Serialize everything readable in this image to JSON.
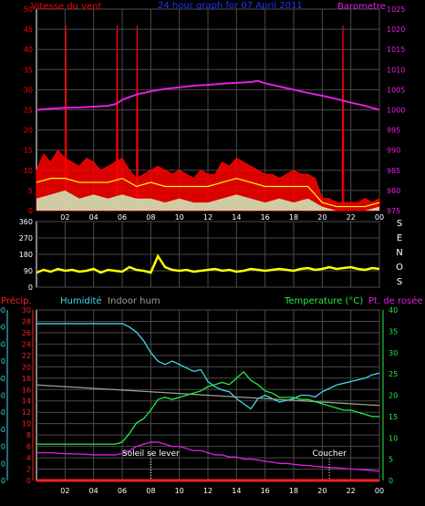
{
  "colors": {
    "wind": "#ff0000",
    "gust": "#ff0000",
    "wind_avg": "#ffff00",
    "wind_low": "#ccffcc",
    "title": "#2233ff",
    "barometer": "#e020e0",
    "direction": "#ffff00",
    "precip": "#ff2020",
    "humidity": "#40d8e8",
    "indoor_hum": "#a0a090",
    "temperature": "#22ee44",
    "dewpoint": "#e020e0",
    "axis": "#ffffff",
    "grid": "#4a4a4a"
  },
  "chart_data": [
    {
      "type": "line",
      "title": "24 hour graph for  07 April 2011",
      "ylabel": "Vitesse du vent",
      "y2label": "Barometre",
      "ylim": [
        0,
        50
      ],
      "y2lim": [
        975,
        1025
      ],
      "yticks": [
        "0",
        "5",
        "10",
        "15",
        "20",
        "25",
        "30",
        "35",
        "40",
        "45",
        "50"
      ],
      "y2ticks": [
        "975",
        "980",
        "985",
        "990",
        "995",
        "1000",
        "1005",
        "1010",
        "1015",
        "1020",
        "1025"
      ],
      "x_ticks": [
        "02",
        "04",
        "06",
        "08",
        "10",
        "12",
        "14",
        "16",
        "18",
        "20",
        "22",
        "00"
      ],
      "series": [
        {
          "key": "wind",
          "axis": "left",
          "x": [
            0,
            0.5,
            1,
            1.5,
            2,
            2.5,
            3,
            3.5,
            4,
            4.5,
            5,
            5.5,
            6,
            6.5,
            7,
            7.5,
            8,
            8.5,
            9,
            9.5,
            10,
            10.5,
            11,
            11.5,
            12,
            12.5,
            13,
            13.5,
            14,
            14.5,
            15,
            15.5,
            16,
            16.5,
            17,
            17.5,
            18,
            18.5,
            19,
            19.5,
            20,
            20.5,
            21,
            21.5,
            22,
            22.5,
            23,
            23.5,
            24
          ],
          "values": [
            10,
            14,
            12,
            15,
            13,
            12,
            11,
            13,
            12,
            10,
            11,
            12,
            13,
            10,
            8,
            9,
            10,
            11,
            10,
            9,
            10,
            9,
            8,
            10,
            9,
            9,
            12,
            11,
            13,
            12,
            11,
            10,
            9,
            9,
            8,
            9,
            10,
            9,
            9,
            8,
            3,
            3,
            2,
            2,
            2,
            2,
            3,
            2,
            3
          ]
        },
        {
          "key": "gust",
          "axis": "left",
          "x": [
            2,
            2.05,
            2.1,
            5.6,
            5.65,
            5.7,
            7,
            7.05,
            7.1,
            21.4,
            21.45,
            21.5
          ],
          "values": [
            0,
            46,
            0,
            0,
            46,
            0,
            0,
            46,
            0,
            0,
            46,
            0
          ]
        },
        {
          "key": "wind_avg",
          "axis": "left",
          "x": [
            0,
            1,
            2,
            3,
            4,
            5,
            6,
            7,
            8,
            9,
            10,
            11,
            12,
            13,
            14,
            15,
            16,
            17,
            18,
            19,
            20,
            21,
            22,
            23,
            24
          ],
          "values": [
            7,
            8,
            8,
            7,
            7,
            7,
            8,
            6,
            7,
            6,
            6,
            6,
            6,
            7,
            8,
            7,
            6,
            6,
            6,
            6,
            2,
            1,
            1,
            1,
            2
          ]
        },
        {
          "key": "wind_low",
          "axis": "left",
          "x": [
            0,
            1,
            2,
            3,
            4,
            5,
            6,
            7,
            8,
            9,
            10,
            11,
            12,
            13,
            14,
            15,
            16,
            17,
            18,
            19,
            20,
            21,
            22,
            23,
            24
          ],
          "values": [
            3,
            4,
            5,
            3,
            4,
            3,
            4,
            3,
            3,
            2,
            3,
            2,
            2,
            3,
            4,
            3,
            2,
            3,
            2,
            3,
            1,
            0,
            0,
            0,
            1
          ]
        },
        {
          "key": "barometer",
          "axis": "right",
          "x": [
            0,
            1,
            2,
            3,
            4,
            5,
            5.6,
            6,
            7,
            8,
            9,
            10,
            11,
            12,
            13,
            14,
            15,
            15.5,
            16,
            17,
            18,
            19,
            20,
            21,
            22,
            23,
            24
          ],
          "values": [
            1000,
            1000.3,
            1000.5,
            1000.6,
            1000.8,
            1001,
            1001.5,
            1002.5,
            1003.8,
            1004.6,
            1005.2,
            1005.6,
            1006,
            1006.2,
            1006.5,
            1006.7,
            1006.9,
            1007.2,
            1006.6,
            1005.8,
            1005,
            1004.2,
            1003.5,
            1002.7,
            1001.8,
            1001,
            1000
          ]
        }
      ]
    },
    {
      "type": "scatter",
      "title": "",
      "ylabel": "",
      "ylim": [
        0,
        360
      ],
      "yticks": [
        "0",
        "90",
        "180",
        "270",
        "360"
      ],
      "right_labels": [
        "S",
        "E",
        "N",
        "O",
        "S"
      ],
      "x_ticks": [],
      "series": [
        {
          "key": "direction",
          "axis": "left",
          "x": [
            0,
            0.5,
            1,
            1.5,
            2,
            2.5,
            3,
            3.5,
            4,
            4.5,
            5,
            5.5,
            6,
            6.5,
            7,
            7.5,
            8,
            8.5,
            9,
            9.5,
            10,
            10.5,
            11,
            11.5,
            12,
            12.5,
            13,
            13.5,
            14,
            14.5,
            15,
            15.5,
            16,
            16.5,
            17,
            17.5,
            18,
            18.5,
            19,
            19.5,
            20,
            20.5,
            21,
            21.5,
            22,
            22.5,
            23,
            23.5,
            24
          ],
          "values": [
            80,
            95,
            85,
            100,
            90,
            95,
            85,
            90,
            100,
            80,
            95,
            90,
            85,
            110,
            95,
            90,
            80,
            170,
            110,
            95,
            90,
            95,
            85,
            90,
            95,
            100,
            90,
            95,
            85,
            90,
            100,
            95,
            90,
            95,
            100,
            95,
            90,
            100,
            105,
            95,
            100,
            110,
            100,
            105,
            110,
            100,
            95,
            105,
            100
          ]
        }
      ]
    },
    {
      "type": "line",
      "title": "",
      "ylabel": "Temperature (°C)",
      "y_precip_label": "Précip.",
      "y_hum_label": "Humidité",
      "y_indoor_label": "Indoor hum",
      "y_dew_label": "Pt. de rosée",
      "humidity_ticks": [
        "0",
        "10",
        "20",
        "30",
        "40",
        "50",
        "60",
        "70",
        "80",
        "90",
        "100"
      ],
      "precip_ticks": [
        "0",
        "2",
        "4",
        "6",
        "8",
        "10",
        "12",
        "14",
        "16",
        "18",
        "20",
        "22",
        "24",
        "26",
        "28",
        "30"
      ],
      "temp_ticks": [
        "0",
        "5",
        "10",
        "15",
        "20",
        "25",
        "30",
        "35",
        "40"
      ],
      "templim": [
        0,
        40
      ],
      "humlim": [
        0,
        100
      ],
      "x_ticks": [
        "02",
        "04",
        "06",
        "08",
        "10",
        "12",
        "14",
        "16",
        "18",
        "20",
        "22",
        "00"
      ],
      "annotations": [
        "Soleil se lever",
        "Coucher"
      ],
      "annotation_x": [
        8,
        20.5
      ],
      "series": [
        {
          "key": "humidity",
          "axis": "humidity",
          "x": [
            0,
            1,
            2,
            3,
            4,
            5,
            5.5,
            6,
            6.5,
            7,
            7.5,
            8,
            8.5,
            9,
            9.5,
            10,
            10.5,
            11,
            11.5,
            12,
            12.5,
            13,
            13.5,
            14,
            14.5,
            15,
            15.5,
            16,
            16.5,
            17,
            17.5,
            18,
            18.5,
            19,
            19.5,
            20,
            20.5,
            21,
            21.5,
            22,
            22.5,
            23,
            23.5,
            24
          ],
          "values": [
            92,
            92,
            92,
            92,
            92,
            92,
            92,
            92,
            90,
            87,
            82,
            75,
            70,
            68,
            70,
            68,
            66,
            64,
            65,
            58,
            55,
            53,
            52,
            48,
            45,
            42,
            48,
            50,
            48,
            46,
            47,
            48,
            50,
            50,
            49,
            52,
            54,
            56,
            57,
            58,
            59,
            60,
            62,
            63
          ]
        },
        {
          "key": "indoor_hum",
          "axis": "humidity",
          "x": [
            0,
            2,
            4,
            6,
            8,
            10,
            12,
            14,
            16,
            18,
            20,
            22,
            24
          ],
          "values": [
            56,
            55,
            54,
            53,
            52,
            51,
            50,
            49,
            48,
            47,
            46,
            45,
            44
          ]
        },
        {
          "key": "temperature",
          "axis": "temperature",
          "x": [
            0,
            1,
            2,
            3,
            4,
            5,
            5.5,
            6,
            6.5,
            7,
            7.5,
            8,
            8.5,
            9,
            9.5,
            10,
            10.5,
            11,
            11.5,
            12,
            12.5,
            13,
            13.5,
            14,
            14.5,
            15,
            15.5,
            16,
            16.5,
            17,
            17.5,
            18,
            18.5,
            19,
            19.5,
            20,
            20.5,
            21,
            21.5,
            22,
            22.5,
            23,
            23.5,
            24
          ],
          "values": [
            8.5,
            8.5,
            8.5,
            8.5,
            8.5,
            8.5,
            8.5,
            9,
            11,
            13.5,
            14.5,
            16.5,
            19,
            19.5,
            19,
            19.5,
            20,
            20.5,
            21,
            22,
            22.5,
            23,
            22.5,
            24,
            25.5,
            23.5,
            22.5,
            21,
            20.5,
            19.5,
            19.5,
            19.5,
            19,
            19,
            18.5,
            18,
            17.5,
            17,
            16.5,
            16.5,
            16,
            15.5,
            15,
            15
          ]
        },
        {
          "key": "dewpoint",
          "axis": "temperature",
          "x": [
            0,
            1,
            2,
            3,
            4,
            5,
            5.5,
            6,
            6.5,
            7,
            7.5,
            8,
            8.5,
            9,
            9.5,
            10,
            10.5,
            11,
            11.5,
            12,
            12.5,
            13,
            13.5,
            14,
            14.5,
            15,
            15.5,
            16,
            16.5,
            17,
            17.5,
            18,
            18.5,
            19,
            19.5,
            20,
            20.5,
            21,
            21.5,
            22,
            22.5,
            23,
            23.5,
            24
          ],
          "values": [
            6.5,
            6.5,
            6.3,
            6.2,
            6,
            6,
            6,
            6.3,
            7,
            8,
            8.5,
            9,
            9,
            8.5,
            8,
            8,
            7.5,
            7,
            7,
            6.5,
            6,
            6,
            5.5,
            5.5,
            5,
            5,
            4.8,
            4.5,
            4.3,
            4,
            4,
            3.8,
            3.6,
            3.5,
            3.3,
            3.2,
            3,
            3,
            2.8,
            2.7,
            2.6,
            2.5,
            2.3,
            2.2
          ]
        },
        {
          "key": "precip",
          "axis": "temperature",
          "x": [
            0,
            24
          ],
          "values": [
            0,
            0
          ]
        }
      ]
    }
  ]
}
